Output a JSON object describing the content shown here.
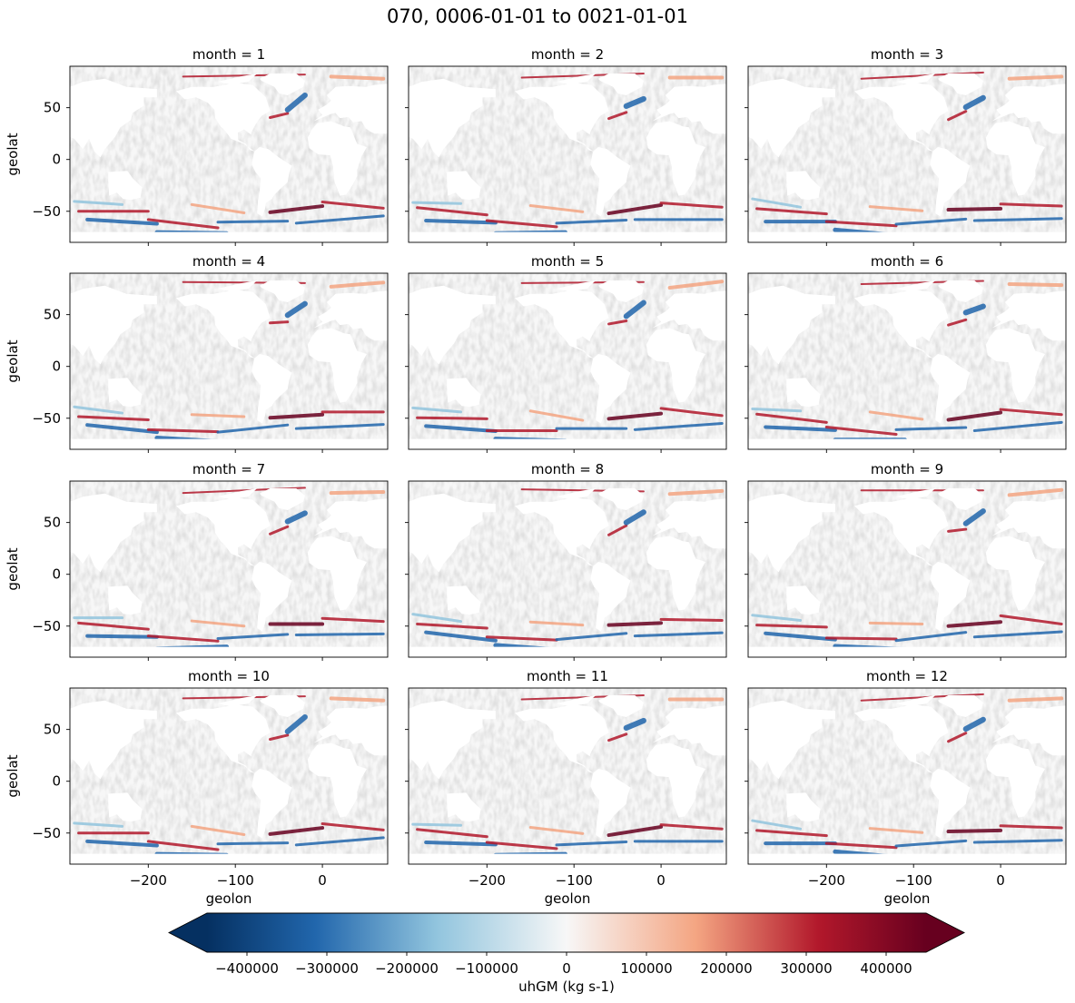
{
  "figure": {
    "title": "070, 0006-01-01 to 0021-01-01"
  },
  "chart_data": {
    "type": "heatmap",
    "title": "070, 0006-01-01 to 0021-01-01",
    "facet_variable": "month",
    "panel_titles": [
      "month = 1",
      "month = 2",
      "month = 3",
      "month = 4",
      "month = 5",
      "month = 6",
      "month = 7",
      "month = 8",
      "month = 9",
      "month = 10",
      "month = 11",
      "month = 12"
    ],
    "xlabel": "geolon",
    "ylabel": "geolat",
    "xlim": [
      -290,
      75
    ],
    "ylim": [
      -80,
      90
    ],
    "xticks": [
      -200,
      -100,
      0
    ],
    "xtick_labels": [
      "−200",
      "−100",
      "0"
    ],
    "yticks": [
      50,
      0,
      -50
    ],
    "ytick_labels": [
      "50",
      "0",
      "−50"
    ],
    "colorbar": {
      "label": "uhGM (kg s-1)",
      "vmin": -450000,
      "vmax": 450000,
      "extend": "both",
      "colormap": "RdBu_r",
      "ticks": [
        -400000,
        -300000,
        -200000,
        -100000,
        0,
        100000,
        200000,
        300000,
        400000
      ],
      "tick_labels": [
        "−400000",
        "−300000",
        "−200000",
        "−100000",
        "0",
        "100000",
        "200000",
        "300000",
        "400000"
      ]
    },
    "colors": {
      "dark_blue": "#053061",
      "blue": "#2166ac",
      "light_blue": "#92c5de",
      "neutral": "#f7f7f7",
      "light_red": "#f4a582",
      "red": "#b2182b",
      "dark_red": "#67001f"
    }
  }
}
